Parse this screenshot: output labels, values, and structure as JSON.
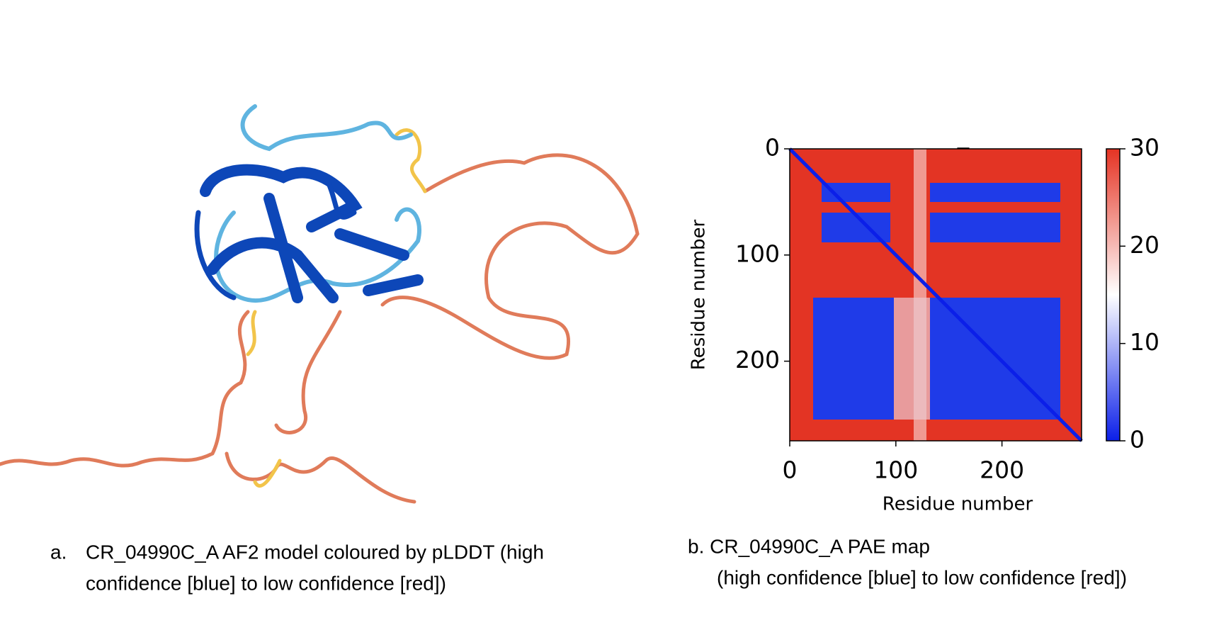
{
  "figure_a": {
    "label": "a.",
    "caption_lines": [
      "CR_04990C_A AF2 model coloured by pLDDT (high",
      "confidence [blue] to low confidence [red])"
    ]
  },
  "figure_b": {
    "caption_lines": [
      "b. CR_04990C_A PAE map",
      "(high confidence [blue] to low confidence [red])"
    ]
  },
  "chart_data": {
    "type": "heatmap",
    "title": "_",
    "x_label": "Residue number",
    "y_label": "Residue number",
    "xlim": [
      0,
      275
    ],
    "ylim": [
      275,
      0
    ],
    "xticks": [
      0,
      100,
      200
    ],
    "yticks": [
      0,
      100,
      200
    ],
    "colorbar": {
      "lim": [
        0,
        30
      ],
      "ticks": [
        0,
        10,
        20,
        30
      ],
      "colors": [
        "#0b1fe8",
        "#ffffff",
        "#e53323"
      ]
    }
  }
}
